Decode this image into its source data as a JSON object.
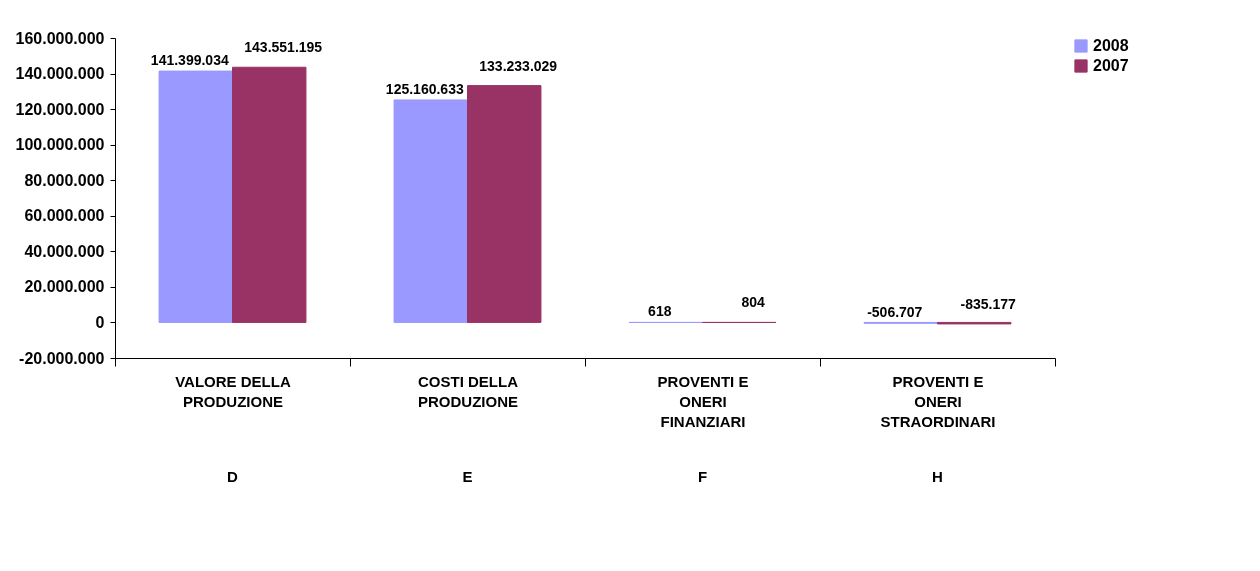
{
  "chart_data": {
    "type": "bar",
    "categories": [
      "VALORE DELLA PRODUZIONE",
      "COSTI DELLA PRODUZIONE",
      "PROVENTI E ONERI FINANZIARI",
      "PROVENTI E ONERI STRAORDINARI"
    ],
    "series": [
      {
        "name": "2008",
        "color": "#9999ff",
        "values": [
          141399034,
          125160633,
          618,
          -506707
        ],
        "value_labels": [
          "141.399.034",
          "125.160.633",
          "618",
          "-506.707"
        ]
      },
      {
        "name": "2007",
        "color": "#993366",
        "values": [
          143551195,
          133233029,
          804,
          -835177
        ],
        "value_labels": [
          "143.551.195",
          "133.233.029",
          "804",
          "-835.177"
        ]
      }
    ],
    "annotations": [
      "D",
      "E",
      "F",
      "H"
    ],
    "ylim": [
      -20000000,
      160000000
    ],
    "yticks": [
      {
        "value": -20000000,
        "label": "-20.000.000"
      },
      {
        "value": 0,
        "label": "0"
      },
      {
        "value": 20000000,
        "label": "20.000.000"
      },
      {
        "value": 40000000,
        "label": "40.000.000"
      },
      {
        "value": 60000000,
        "label": "60.000.000"
      },
      {
        "value": 80000000,
        "label": "80.000.000"
      },
      {
        "value": 100000000,
        "label": "100.000.000"
      },
      {
        "value": 120000000,
        "label": "120.000.000"
      },
      {
        "value": 140000000,
        "label": "140.000.000"
      },
      {
        "value": 160000000,
        "label": "160.000.000"
      }
    ],
    "grid": false,
    "legend": "right"
  }
}
